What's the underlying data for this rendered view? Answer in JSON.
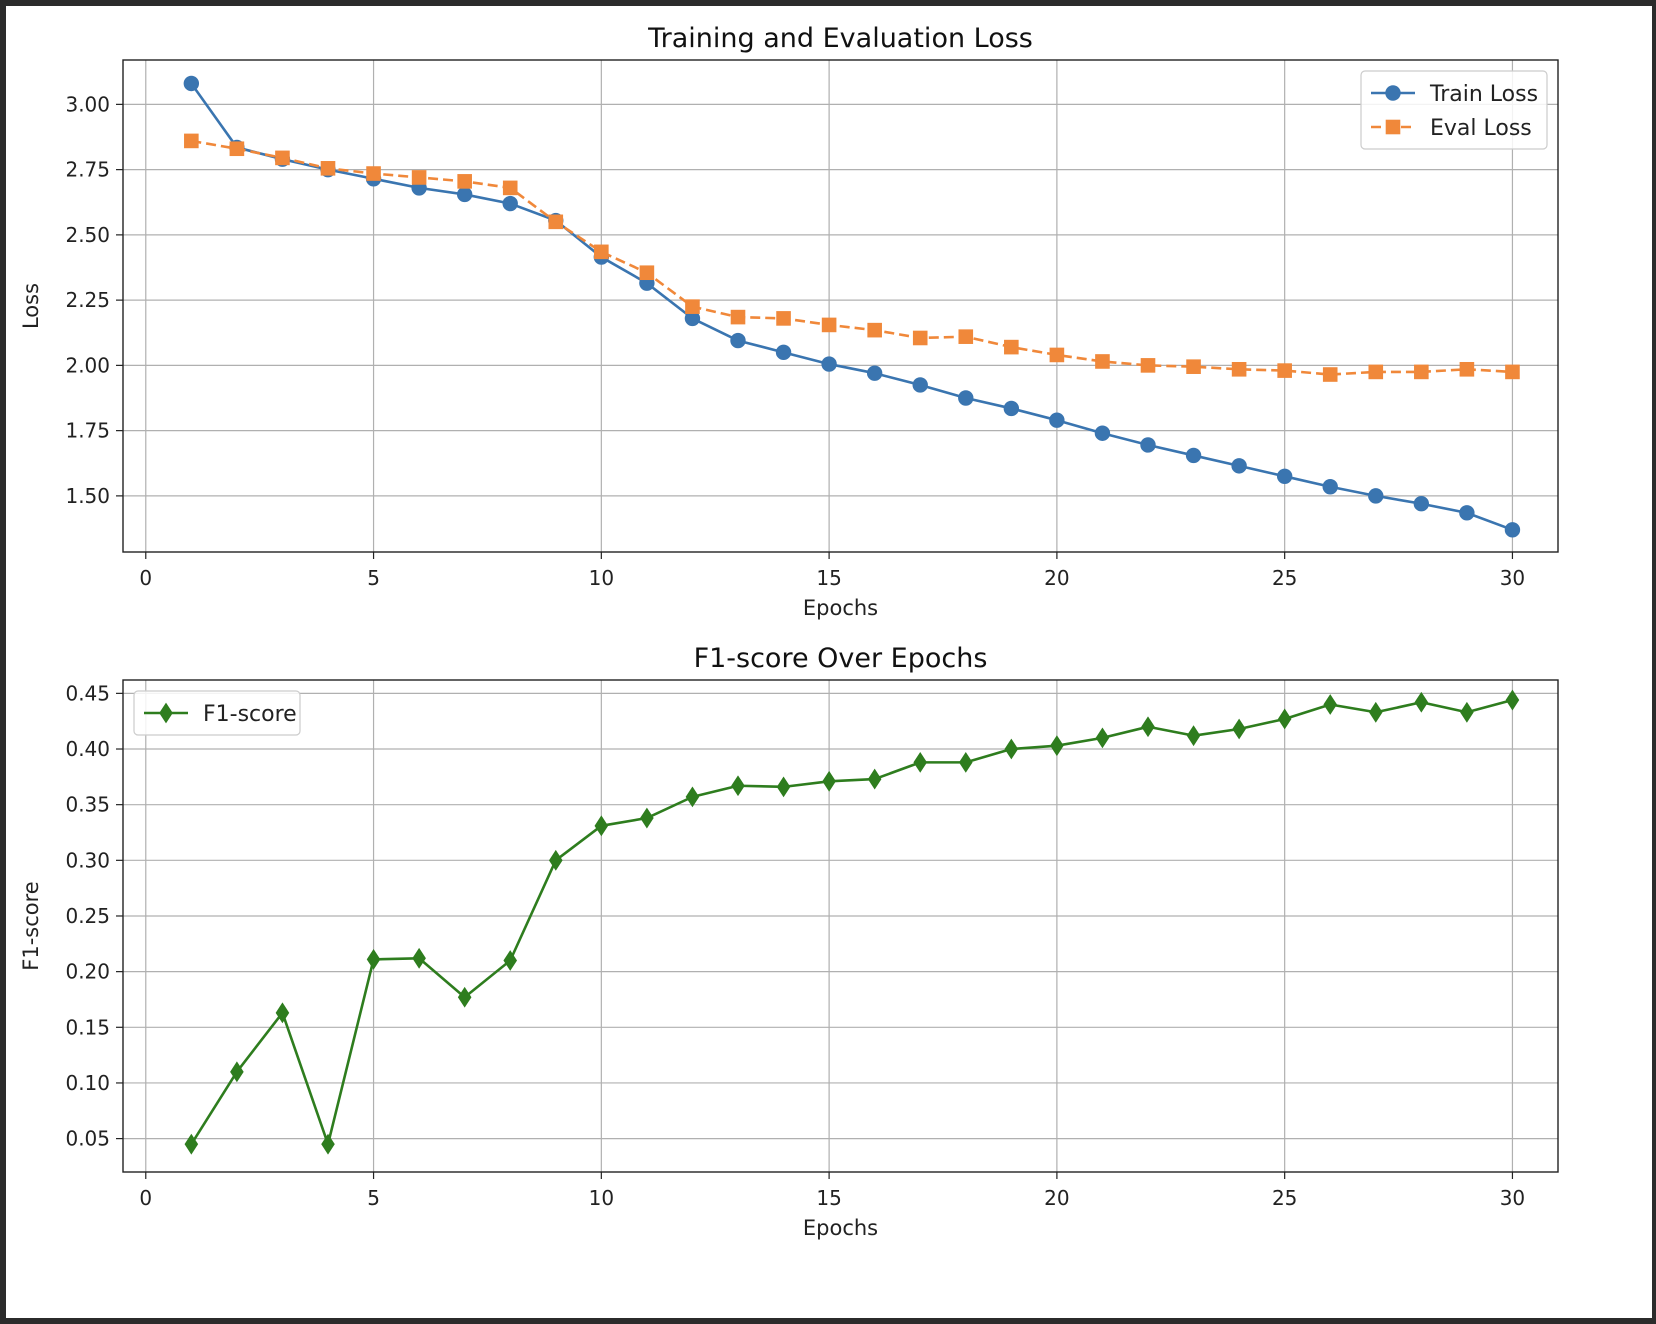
{
  "chart_data": [
    {
      "type": "line",
      "title": "Training and Evaluation Loss",
      "xlabel": "Epochs",
      "ylabel": "Loss",
      "xlim": [
        -0.5,
        31
      ],
      "ylim": [
        1.285,
        3.17
      ],
      "xticks": [
        0,
        5,
        10,
        15,
        20,
        25,
        30
      ],
      "xtick_labels": [
        "0",
        "5",
        "10",
        "15",
        "20",
        "25",
        "30"
      ],
      "yticks": [
        1.5,
        1.75,
        2.0,
        2.25,
        2.5,
        2.75,
        3.0
      ],
      "ytick_labels": [
        "1.50",
        "1.75",
        "2.00",
        "2.25",
        "2.50",
        "2.75",
        "3.00"
      ],
      "grid": true,
      "legend": "upper-right",
      "x": [
        1,
        2,
        3,
        4,
        5,
        6,
        7,
        8,
        9,
        10,
        11,
        12,
        13,
        14,
        15,
        16,
        17,
        18,
        19,
        20,
        21,
        22,
        23,
        24,
        25,
        26,
        27,
        28,
        29,
        30
      ],
      "series": [
        {
          "name": "Train Loss",
          "color": "#3a75b0",
          "marker": "circle",
          "linestyle": "solid",
          "values": [
            3.08,
            2.835,
            2.79,
            2.75,
            2.715,
            2.68,
            2.655,
            2.62,
            2.555,
            2.415,
            2.315,
            2.18,
            2.095,
            2.05,
            2.005,
            1.97,
            1.925,
            1.875,
            1.835,
            1.79,
            1.74,
            1.695,
            1.655,
            1.615,
            1.575,
            1.535,
            1.5,
            1.47,
            1.435,
            1.37
          ]
        },
        {
          "name": "Eval Loss",
          "color": "#f0883a",
          "marker": "square",
          "linestyle": "dashed",
          "values": [
            2.86,
            2.83,
            2.795,
            2.755,
            2.735,
            2.72,
            2.705,
            2.68,
            2.55,
            2.435,
            2.355,
            2.225,
            2.185,
            2.18,
            2.155,
            2.135,
            2.105,
            2.11,
            2.07,
            2.04,
            2.015,
            2.0,
            1.995,
            1.985,
            1.98,
            1.965,
            1.975,
            1.975,
            1.985,
            1.975
          ]
        }
      ]
    },
    {
      "type": "line",
      "title": "F1-score Over Epochs",
      "xlabel": "Epochs",
      "ylabel": "F1-score",
      "xlim": [
        -0.5,
        31
      ],
      "ylim": [
        0.02,
        0.462
      ],
      "xticks": [
        0,
        5,
        10,
        15,
        20,
        25,
        30
      ],
      "xtick_labels": [
        "0",
        "5",
        "10",
        "15",
        "20",
        "25",
        "30"
      ],
      "yticks": [
        0.05,
        0.1,
        0.15,
        0.2,
        0.25,
        0.3,
        0.35,
        0.4,
        0.45
      ],
      "ytick_labels": [
        "0.05",
        "0.10",
        "0.15",
        "0.20",
        "0.25",
        "0.30",
        "0.35",
        "0.40",
        "0.45"
      ],
      "grid": true,
      "legend": "upper-left",
      "x": [
        1,
        2,
        3,
        4,
        5,
        6,
        7,
        8,
        9,
        10,
        11,
        12,
        13,
        14,
        15,
        16,
        17,
        18,
        19,
        20,
        21,
        22,
        23,
        24,
        25,
        26,
        27,
        28,
        29,
        30
      ],
      "series": [
        {
          "name": "F1-score",
          "color": "#2e7d1e",
          "marker": "diamond",
          "linestyle": "solid",
          "values": [
            0.045,
            0.11,
            0.163,
            0.045,
            0.211,
            0.212,
            0.177,
            0.21,
            0.3,
            0.331,
            0.338,
            0.357,
            0.367,
            0.366,
            0.371,
            0.373,
            0.388,
            0.388,
            0.4,
            0.403,
            0.41,
            0.42,
            0.412,
            0.418,
            0.427,
            0.44,
            0.433,
            0.442,
            0.433,
            0.444
          ]
        }
      ]
    }
  ]
}
